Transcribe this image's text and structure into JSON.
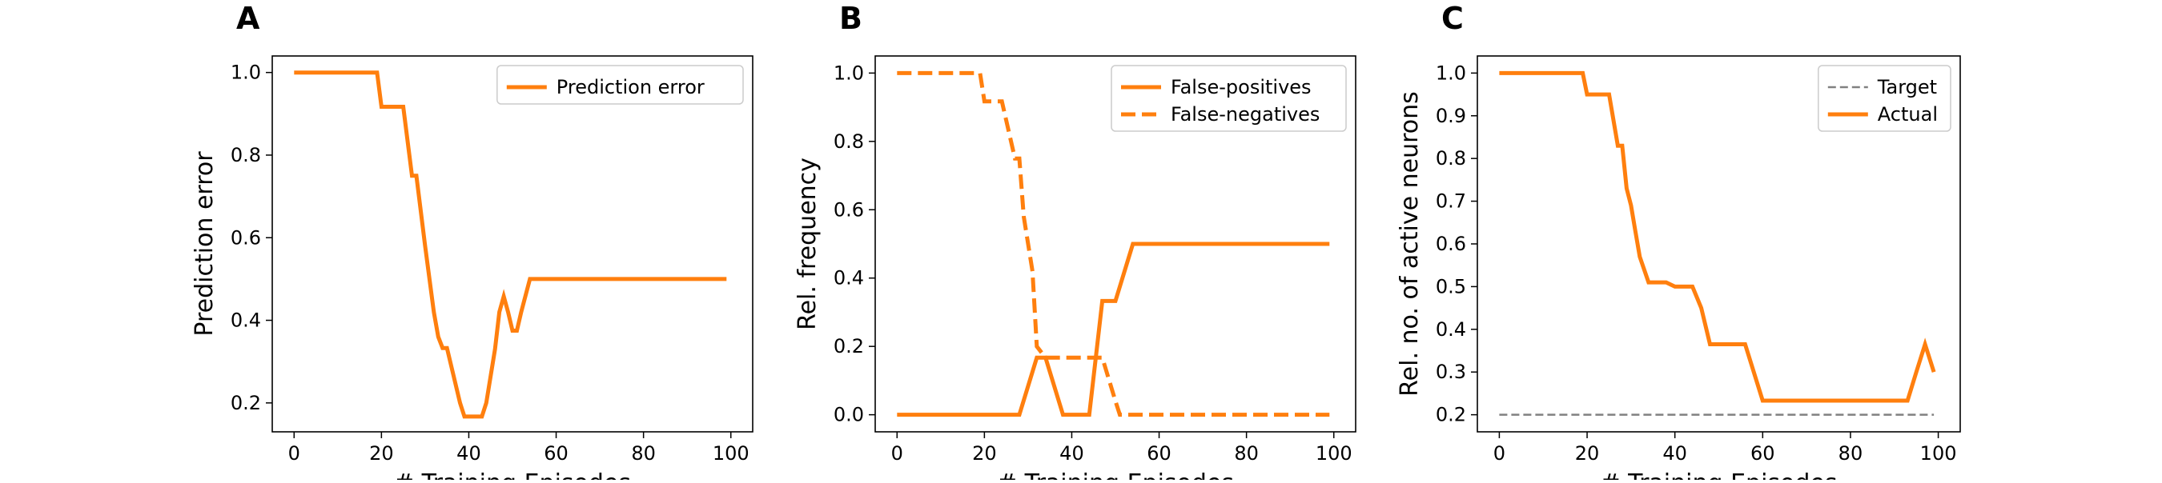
{
  "chart_data": [
    {
      "type": "line",
      "panel_label": "A",
      "xlabel": "# Training Episodes",
      "ylabel": "Prediction error",
      "xlim": [
        -5,
        105
      ],
      "ylim": [
        0.13,
        1.04
      ],
      "xticks": [
        0,
        20,
        40,
        60,
        80,
        100
      ],
      "yticks": [
        0.2,
        0.4,
        0.6,
        0.8,
        1.0
      ],
      "ytick_labels": [
        "0.2",
        "0.4",
        "0.6",
        "0.8",
        "1.0"
      ],
      "legend": "top-right",
      "series": [
        {
          "name": "Prediction error",
          "color": "#ff7f0e",
          "style": "solid",
          "x": [
            0,
            19,
            20,
            25,
            27,
            28,
            30,
            32,
            33,
            34,
            35,
            38,
            39,
            40,
            43,
            44,
            46,
            47,
            48,
            49,
            50,
            51,
            52,
            54,
            60,
            80,
            99
          ],
          "y": [
            1.0,
            1.0,
            0.917,
            0.917,
            0.75,
            0.75,
            0.58,
            0.42,
            0.36,
            0.333,
            0.333,
            0.2,
            0.167,
            0.167,
            0.167,
            0.2,
            0.33,
            0.42,
            0.458,
            0.42,
            0.375,
            0.375,
            0.42,
            0.5,
            0.5,
            0.5,
            0.5
          ]
        }
      ]
    },
    {
      "type": "line",
      "panel_label": "B",
      "xlabel": "# Training Episodes",
      "ylabel": "Rel. frequency",
      "xlim": [
        -5,
        105
      ],
      "ylim": [
        -0.05,
        1.05
      ],
      "xticks": [
        0,
        20,
        40,
        60,
        80,
        100
      ],
      "yticks": [
        0.0,
        0.2,
        0.4,
        0.6,
        0.8,
        1.0
      ],
      "ytick_labels": [
        "0.0",
        "0.2",
        "0.4",
        "0.6",
        "0.8",
        "1.0"
      ],
      "legend": "top-right",
      "series": [
        {
          "name": "False-positives",
          "color": "#ff7f0e",
          "style": "solid",
          "x": [
            0,
            28,
            32,
            34,
            38,
            44,
            47,
            48,
            50,
            54,
            60,
            80,
            99
          ],
          "y": [
            0.0,
            0.0,
            0.167,
            0.167,
            0.0,
            0.0,
            0.333,
            0.333,
            0.333,
            0.5,
            0.5,
            0.5,
            0.5
          ]
        },
        {
          "name": "False-negatives",
          "color": "#ff7f0e",
          "style": "dashed",
          "x": [
            0,
            19,
            20,
            23,
            24,
            27,
            28,
            29,
            31,
            32,
            34,
            40,
            44,
            47,
            50,
            51,
            54,
            60,
            80,
            99
          ],
          "y": [
            1.0,
            1.0,
            0.917,
            0.917,
            0.917,
            0.75,
            0.75,
            0.58,
            0.42,
            0.2,
            0.167,
            0.167,
            0.167,
            0.167,
            0.04,
            0.0,
            0.0,
            0.0,
            0.0,
            0.0
          ]
        }
      ]
    },
    {
      "type": "line",
      "panel_label": "C",
      "xlabel": "# Training Episodes",
      "ylabel": "Rel. no. of active neurons",
      "xlim": [
        -5,
        105
      ],
      "ylim": [
        0.16,
        1.04
      ],
      "xticks": [
        0,
        20,
        40,
        60,
        80,
        100
      ],
      "yticks": [
        0.2,
        0.3,
        0.4,
        0.5,
        0.6,
        0.7,
        0.8,
        0.9,
        1.0
      ],
      "ytick_labels": [
        "0.2",
        "0.3",
        "0.4",
        "0.5",
        "0.6",
        "0.7",
        "0.8",
        "0.9",
        "1.0"
      ],
      "legend": "top-right",
      "series": [
        {
          "name": "Target",
          "color": "#808080",
          "style": "dashed",
          "x": [
            0,
            99
          ],
          "y": [
            0.2,
            0.2
          ]
        },
        {
          "name": "Actual",
          "color": "#ff7f0e",
          "style": "solid",
          "x": [
            0,
            19,
            20,
            25,
            27,
            28,
            29,
            30,
            31,
            32,
            34,
            36,
            38,
            40,
            43,
            44,
            46,
            48,
            52,
            54,
            56,
            60,
            70,
            80,
            90,
            93,
            95,
            97,
            99
          ],
          "y": [
            1.0,
            1.0,
            0.95,
            0.95,
            0.83,
            0.83,
            0.73,
            0.69,
            0.63,
            0.57,
            0.51,
            0.51,
            0.51,
            0.5,
            0.5,
            0.5,
            0.45,
            0.365,
            0.365,
            0.365,
            0.365,
            0.233,
            0.233,
            0.233,
            0.233,
            0.233,
            0.3,
            0.365,
            0.3
          ]
        }
      ]
    }
  ]
}
